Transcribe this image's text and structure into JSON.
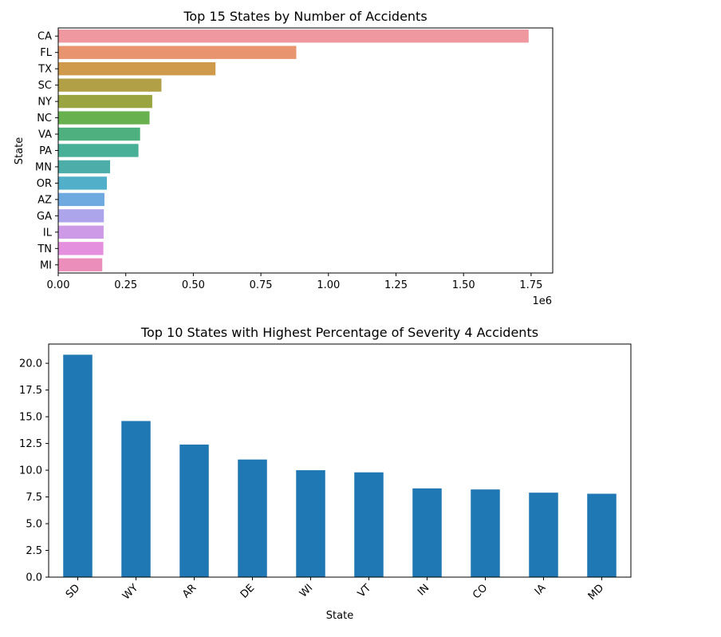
{
  "chart_data": [
    {
      "type": "bar",
      "orientation": "horizontal",
      "title": "Top 15 States by Number of Accidents",
      "xlabel": "",
      "ylabel": "State",
      "x_offset_text": "1e6",
      "xlim": [
        0,
        1.83
      ],
      "xticks": [
        "0.00",
        "0.25",
        "0.50",
        "0.75",
        "1.00",
        "1.25",
        "1.50",
        "1.75"
      ],
      "categories": [
        "CA",
        "FL",
        "TX",
        "SC",
        "NY",
        "NC",
        "VA",
        "PA",
        "MN",
        "OR",
        "AZ",
        "GA",
        "IL",
        "TN",
        "MI"
      ],
      "values": [
        1.741,
        0.881,
        0.582,
        0.382,
        0.348,
        0.338,
        0.303,
        0.297,
        0.192,
        0.18,
        0.171,
        0.169,
        0.168,
        0.167,
        0.163
      ],
      "colors": [
        "#f0989f",
        "#e8946e",
        "#d09a4c",
        "#b2a046",
        "#9aa542",
        "#67b14e",
        "#4db07e",
        "#49b098",
        "#4cada9",
        "#52afc9",
        "#6ea9e0",
        "#ada5eb",
        "#cc9ae6",
        "#e58fdf",
        "#ec8ebb"
      ]
    },
    {
      "type": "bar",
      "title": "Top 10 States with Highest Percentage of Severity 4 Accidents",
      "xlabel": "State",
      "ylabel": "",
      "ylim": [
        0,
        21.8
      ],
      "yticks": [
        "0.0",
        "2.5",
        "5.0",
        "7.5",
        "10.0",
        "12.5",
        "15.0",
        "17.5",
        "20.0"
      ],
      "categories": [
        "SD",
        "WY",
        "AR",
        "DE",
        "WI",
        "VT",
        "IN",
        "CO",
        "IA",
        "MD"
      ],
      "values": [
        20.8,
        14.6,
        12.4,
        11.0,
        10.0,
        9.8,
        8.3,
        8.2,
        7.9,
        7.8
      ],
      "color": "#1f77b4"
    }
  ]
}
